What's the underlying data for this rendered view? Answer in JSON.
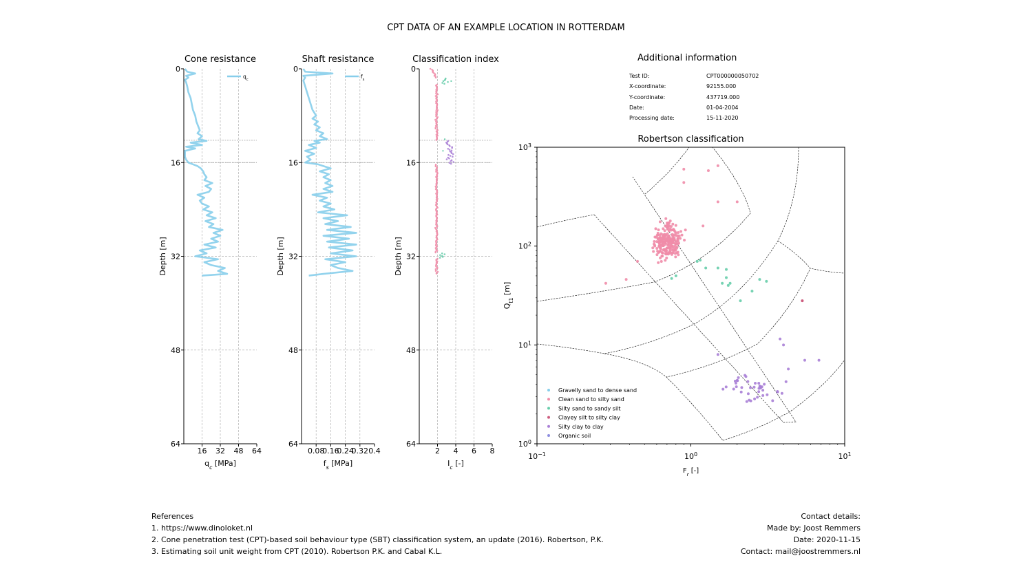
{
  "suptitle": "CPT DATA OF AN EXAMPLE LOCATION IN ROTTERDAM",
  "colors": {
    "profile": "#87CEEB",
    "gravelly_sand": "#87CEEB",
    "clean_sand": "#F08CA8",
    "silty_sand": "#66CDAA",
    "clayey_silt": "#CD5C7E",
    "silty_clay": "#A97FD6",
    "organic": "#8E8EE0"
  },
  "additional_info": {
    "title": "Additional information",
    "rows": [
      {
        "label": "Test ID:",
        "value": "CPT000000050702"
      },
      {
        "label": "X-coordinate:",
        "value": "92155.000"
      },
      {
        "label": "Y-coordinate:",
        "value": "437719.000"
      },
      {
        "label": "Date:",
        "value": "01-04-2004"
      },
      {
        "label": "Processing date:",
        "value": "15-11-2020"
      }
    ]
  },
  "references": {
    "title": "References",
    "items": [
      "1. https://www.dinoloket.nl",
      "2. Cone penetration test (CPT)-based soil behaviour type (SBT) classification system, an update (2016). Robertson, P.K.",
      "3. Estimating soil unit weight from CPT (2010). Robertson P.K. and Cabal K.L."
    ]
  },
  "contact": {
    "title": "Contact details:",
    "made_by": "Made by: Joost Remmers",
    "date": "Date: 2020-11-15",
    "email": "Contact: mail@joostremmers.nl"
  },
  "depth_axis": {
    "ylabel": "Depth [m]",
    "ylim": [
      0,
      64
    ],
    "ticks": [
      "0",
      "16",
      "32",
      "48",
      "64"
    ],
    "extra_lines": [
      12.2,
      16
    ]
  },
  "chart_data": [
    {
      "type": "line",
      "title": "Cone resistance",
      "xlabel": "q_c [MPa]",
      "xlim": [
        0,
        64
      ],
      "xticks": [
        16,
        32,
        48,
        64
      ],
      "xtick_labels": [
        "16",
        "32",
        "48",
        "64"
      ],
      "legend": "q_c",
      "legend_loc": "top-right",
      "depth": [
        0,
        0.5,
        0.8,
        1.2,
        1.5,
        1.9,
        2.3,
        3,
        4,
        5,
        6,
        7,
        7.5,
        8,
        9,
        9.5,
        10,
        10.5,
        11,
        11.5,
        12,
        12.3,
        12.6,
        13,
        13.3,
        13.6,
        14,
        14.5,
        15,
        15.5,
        16,
        16.3,
        16.6,
        17,
        17.5,
        18,
        18.5,
        19,
        19.5,
        20,
        20.5,
        21,
        21.5,
        22,
        22.5,
        23,
        23.5,
        24,
        24.5,
        25,
        25.5,
        26,
        26.5,
        27,
        27.5,
        28,
        28.5,
        29,
        29.5,
        30,
        30.5,
        31,
        31.5,
        32,
        32.5,
        33,
        33.5,
        34,
        34.5,
        35,
        35.3
      ],
      "values": [
        1,
        3,
        10,
        2,
        4,
        1,
        2,
        3,
        4,
        6,
        7,
        8,
        9,
        10,
        11,
        12,
        13,
        14,
        12,
        16,
        13,
        20,
        6,
        16,
        2,
        10,
        1,
        1,
        1,
        2,
        4,
        8,
        12,
        15,
        17,
        18,
        20,
        18,
        25,
        19,
        24,
        22,
        12,
        18,
        14,
        16,
        22,
        17,
        25,
        20,
        28,
        19,
        26,
        22,
        34,
        26,
        32,
        24,
        30,
        18,
        28,
        14,
        20,
        10,
        30,
        18,
        24,
        36,
        30,
        38,
        16
      ]
    },
    {
      "type": "line",
      "title": "Shaft resistance",
      "xlabel": "f_s [MPa]",
      "xlim": [
        0,
        0.4
      ],
      "xticks": [
        0.08,
        0.16,
        0.24,
        0.32,
        0.4
      ],
      "xtick_labels": [
        "0.08",
        "0.16",
        "0.24",
        "0.32",
        "0.4"
      ],
      "legend": "f_s",
      "legend_loc": "top-right",
      "depth": [
        0,
        0.5,
        0.8,
        1.2,
        1.5,
        2,
        3,
        4,
        5,
        6,
        7,
        7.5,
        8,
        8.5,
        9,
        9.5,
        10,
        10.5,
        11,
        11.5,
        12,
        12.3,
        12.6,
        13,
        13.5,
        14,
        14.5,
        15,
        15.5,
        16,
        16.3,
        16.6,
        17,
        17.5,
        18,
        18.5,
        19,
        19.5,
        20,
        20.5,
        21,
        21.5,
        22,
        22.5,
        23,
        23.5,
        24,
        24.5,
        25,
        25.5,
        26,
        26.5,
        27,
        27.5,
        28,
        28.5,
        29,
        29.5,
        30,
        30.5,
        31,
        31.5,
        32,
        32.5,
        33,
        33.5,
        34,
        34.5,
        35,
        35.3
      ],
      "values": [
        0.01,
        0.02,
        0.17,
        0.01,
        0.02,
        0.01,
        0.02,
        0.03,
        0.04,
        0.05,
        0.06,
        0.07,
        0.08,
        0.06,
        0.09,
        0.07,
        0.1,
        0.08,
        0.12,
        0.1,
        0.14,
        0.07,
        0.1,
        0.04,
        0.08,
        0.02,
        0.07,
        0.03,
        0.05,
        0.02,
        0.09,
        0.12,
        0.16,
        0.1,
        0.15,
        0.12,
        0.16,
        0.13,
        0.17,
        0.12,
        0.17,
        0.06,
        0.14,
        0.1,
        0.16,
        0.12,
        0.18,
        0.09,
        0.25,
        0.12,
        0.2,
        0.13,
        0.27,
        0.14,
        0.3,
        0.12,
        0.26,
        0.14,
        0.3,
        0.15,
        0.28,
        0.16,
        0.3,
        0.13,
        0.24,
        0.16,
        0.2,
        0.28,
        0.12,
        0.04
      ]
    },
    {
      "type": "scatter",
      "title": "Classification index",
      "xlabel": "I_c [-]",
      "xlim": [
        0,
        8
      ],
      "xticks": [
        2,
        4,
        6,
        8
      ],
      "xtick_labels": [
        "2",
        "4",
        "6",
        "8"
      ]
    },
    {
      "type": "scatter",
      "title": "Robertson classification",
      "xlabel": "F_r [-]",
      "ylabel": "Q_t1 [m]",
      "xscale": "log",
      "yscale": "log",
      "xlim": [
        0.1,
        10
      ],
      "ylim": [
        1,
        1000
      ],
      "xtick_labels": [
        {
          "base": "10",
          "exp": "−1"
        },
        {
          "base": "10",
          "exp": "0"
        },
        {
          "base": "10",
          "exp": "1"
        }
      ],
      "ytick_labels": [
        {
          "base": "10",
          "exp": "0"
        },
        {
          "base": "10",
          "exp": "1"
        },
        {
          "base": "10",
          "exp": "2"
        },
        {
          "base": "10",
          "exp": "3"
        }
      ],
      "legend_loc": "lower-left",
      "legend": [
        {
          "key": "gravelly_sand",
          "label": "Gravelly sand to dense sand"
        },
        {
          "key": "clean_sand",
          "label": "Clean sand to silty sand"
        },
        {
          "key": "silty_sand",
          "label": "Silty sand to sandy silt"
        },
        {
          "key": "clayey_silt",
          "label": "Clayey silt to silty clay"
        },
        {
          "key": "silty_clay",
          "label": "Silty clay to clay"
        },
        {
          "key": "organic",
          "label": "Organic soil"
        }
      ]
    }
  ]
}
